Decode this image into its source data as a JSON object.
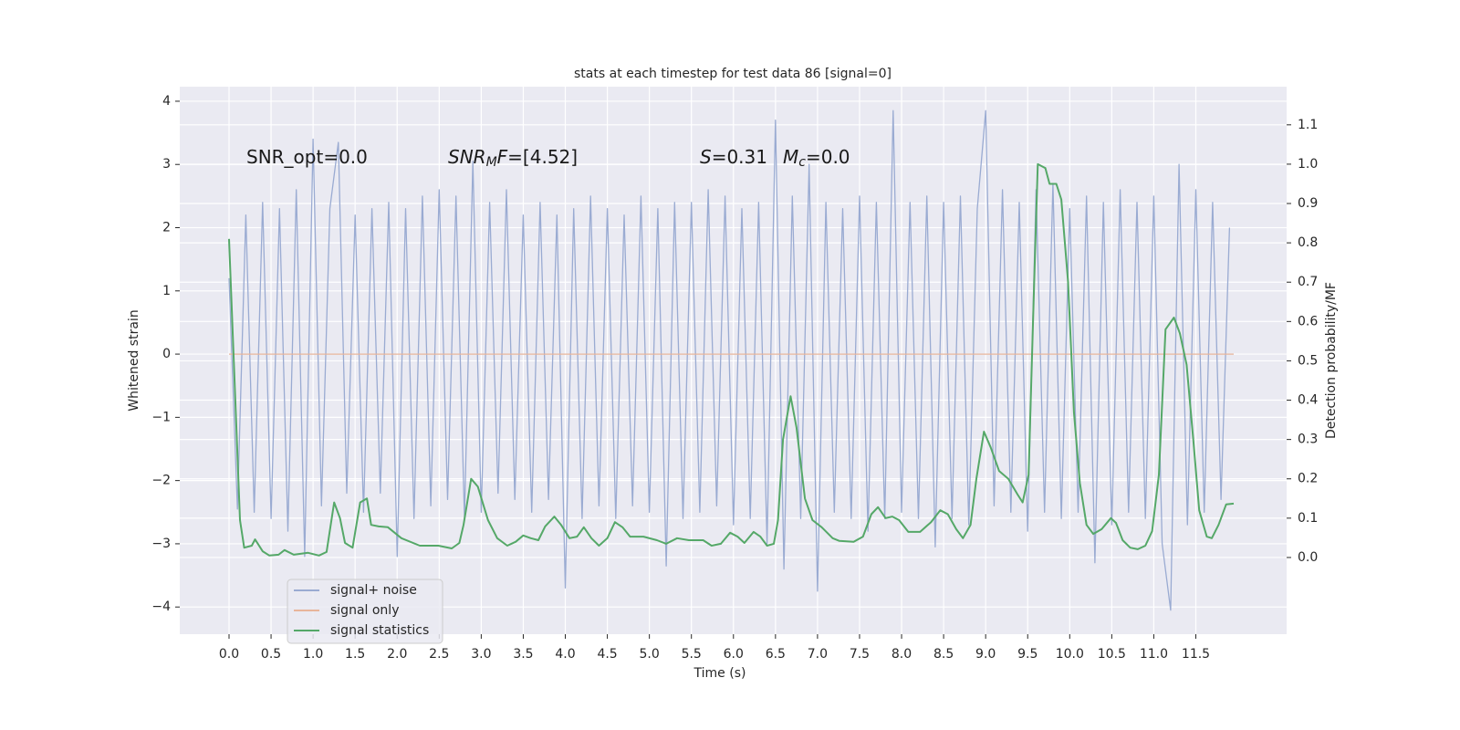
{
  "chart_data": {
    "type": "line",
    "title": "stats at each timestep for test data 86 [signal=0]",
    "xlabel": "Time (s)",
    "ylabel": "Whitened strain",
    "y2label": "Detection probability/MF",
    "xlim": [
      -0.586,
      12.58
    ],
    "ylim": [
      -4.43,
      4.23
    ],
    "y2lim": [
      -0.195,
      1.197
    ],
    "xticks": [
      {
        "value": 0,
        "label": "0.0"
      },
      0.5,
      {
        "value": 1,
        "label": "1.0"
      },
      1.5,
      {
        "value": 2,
        "label": "2.0"
      },
      2.5,
      {
        "value": 3,
        "label": "3.0"
      },
      3.5,
      {
        "value": 4,
        "label": "4.0"
      },
      4.5,
      {
        "value": 5,
        "label": "5.0"
      },
      5.5,
      {
        "value": 6,
        "label": "6.0"
      },
      6.5,
      {
        "value": 7,
        "label": "7.0"
      },
      7.5,
      {
        "value": 8,
        "label": "8.0"
      },
      8.5,
      {
        "value": 9,
        "label": "9.0"
      },
      9.5,
      {
        "value": 10,
        "label": "10.0"
      },
      10.5,
      {
        "value": 11,
        "label": "11.0"
      },
      11.5
    ],
    "yticks": [
      {
        "value": -4,
        "label": "−4"
      },
      {
        "value": -3,
        "label": "−3"
      },
      {
        "value": -2,
        "label": "−2"
      },
      {
        "value": -1,
        "label": "−1"
      },
      0,
      1,
      2,
      3,
      4
    ],
    "y2ticks": [
      {
        "value": 0,
        "label": "0.0"
      },
      0.1,
      0.2,
      0.3,
      0.4,
      0.5,
      0.6,
      0.7,
      0.8,
      0.9,
      {
        "value": 1,
        "label": "1.0"
      },
      1.1
    ],
    "grid": true,
    "legend": "lower left",
    "annotations": [
      [
        {
          "text": "SNR_opt=0.0"
        }
      ],
      [
        {
          "text": "SNR",
          "italic": true
        },
        {
          "text": "M",
          "italic": true,
          "sub": true
        },
        {
          "text": "F",
          "italic": true
        },
        {
          "text": "=[4.52]"
        }
      ],
      [
        {
          "text": "S",
          "italic": true
        },
        {
          "text": "=0.31"
        }
      ],
      [
        {
          "text": "M",
          "italic": true
        },
        {
          "text": "c",
          "italic": true,
          "sub": true
        },
        {
          "text": "=0.0"
        }
      ]
    ],
    "series": [
      {
        "name": "signal+ noise",
        "color": "#9aabd2",
        "x": [
          0,
          0.1,
          0.2,
          0.3,
          0.4,
          0.5,
          0.6,
          0.7,
          0.8,
          0.9,
          1,
          1.1,
          1.2,
          1.3,
          1.4,
          1.5,
          1.6,
          1.7,
          1.8,
          1.9,
          2,
          2.1,
          2.2,
          2.3,
          2.4,
          2.5,
          2.6,
          2.7,
          2.8,
          2.9,
          3,
          3.1,
          3.2,
          3.3,
          3.4,
          3.5,
          3.6,
          3.7,
          3.8,
          3.9,
          4,
          4.1,
          4.2,
          4.3,
          4.4,
          4.5,
          4.6,
          4.7,
          4.8,
          4.9,
          5,
          5.1,
          5.2,
          5.3,
          5.4,
          5.5,
          5.6,
          5.7,
          5.8,
          5.9,
          6,
          6.1,
          6.2,
          6.3,
          6.4,
          6.5,
          6.6,
          6.7,
          6.8,
          6.9,
          7,
          7.1,
          7.2,
          7.3,
          7.4,
          7.5,
          7.6,
          7.7,
          7.8,
          7.9,
          8,
          8.1,
          8.2,
          8.3,
          8.4,
          8.5,
          8.6,
          8.7,
          8.8,
          8.9,
          9,
          9.1,
          9.2,
          9.3,
          9.4,
          9.5,
          9.6,
          9.7,
          9.8,
          9.9,
          10,
          10.1,
          10.2,
          10.3,
          10.4,
          10.5,
          10.6,
          10.7,
          10.8,
          10.9,
          11,
          11.1,
          11.2,
          11.3,
          11.4,
          11.5,
          11.6,
          11.7,
          11.8,
          11.9
        ],
        "values": [
          1.2,
          -2.45,
          2.2,
          -2.5,
          2.4,
          -2.6,
          2.3,
          -2.8,
          2.6,
          -3.2,
          3.4,
          -2.4,
          2.3,
          3.35,
          -2.2,
          2.2,
          -2.5,
          2.3,
          -2.2,
          2.4,
          -3.2,
          2.3,
          -2.6,
          2.5,
          -2.4,
          2.6,
          -2.3,
          2.5,
          -2.6,
          3.05,
          -2.5,
          2.4,
          -2.2,
          2.6,
          -2.3,
          2.2,
          -2.5,
          2.4,
          -2.3,
          2.2,
          -3.7,
          2.3,
          -2.6,
          2.5,
          -2.4,
          2.3,
          -2.6,
          2.2,
          -2.4,
          2.5,
          -2.5,
          2.3,
          -3.35,
          2.4,
          -2.6,
          2.4,
          -2.5,
          2.6,
          -2.4,
          2.5,
          -2.7,
          2.3,
          -2.6,
          2.4,
          -3.0,
          3.7,
          -3.4,
          2.5,
          -2.6,
          3.0,
          -3.75,
          2.4,
          -2.5,
          2.3,
          -2.6,
          2.5,
          -2.8,
          2.4,
          -2.6,
          3.85,
          -2.5,
          2.4,
          -2.6,
          2.5,
          -3.05,
          2.4,
          -2.6,
          2.5,
          -2.7,
          2.3,
          3.85,
          -2.4,
          2.6,
          -2.5,
          2.4,
          -2.8,
          2.6,
          -2.5,
          2.7,
          -2.6,
          2.3,
          -2.5,
          2.5,
          -3.3,
          2.4,
          -2.7,
          2.6,
          -2.5,
          2.4,
          -2.6,
          2.5,
          -3.0,
          -4.05,
          3.0,
          -2.7,
          2.6,
          -2.5,
          2.4,
          -2.3,
          2.0
        ]
      },
      {
        "name": "signal only",
        "color": "#e8b59b",
        "x": [
          0,
          11.95
        ],
        "values": [
          0,
          0
        ]
      },
      {
        "name": "signal statistics",
        "color": "#55a868",
        "axis": "y2",
        "x": [
          0,
          0.13,
          0.18,
          0.27,
          0.31,
          0.4,
          0.48,
          0.59,
          0.66,
          0.77,
          0.94,
          1.07,
          1.16,
          1.25,
          1.32,
          1.38,
          1.47,
          1.56,
          1.64,
          1.69,
          1.78,
          1.89,
          2.05,
          2.27,
          2.49,
          2.65,
          2.74,
          2.79,
          2.88,
          2.96,
          3.08,
          3.19,
          3.31,
          3.41,
          3.5,
          3.59,
          3.68,
          3.76,
          3.87,
          3.95,
          4.05,
          4.14,
          4.22,
          4.31,
          4.4,
          4.5,
          4.59,
          4.68,
          4.77,
          4.93,
          5.09,
          5.2,
          5.33,
          5.47,
          5.64,
          5.74,
          5.85,
          5.96,
          6.05,
          6.13,
          6.24,
          6.32,
          6.4,
          6.48,
          6.53,
          6.59,
          6.68,
          6.75,
          6.85,
          6.94,
          7.05,
          7.18,
          7.26,
          7.43,
          7.54,
          7.64,
          7.72,
          7.81,
          7.89,
          7.97,
          8.08,
          8.22,
          8.35,
          8.46,
          8.55,
          8.65,
          8.73,
          8.82,
          8.89,
          8.98,
          9.06,
          9.16,
          9.27,
          9.38,
          9.44,
          9.51,
          9.58,
          9.62,
          9.71,
          9.76,
          9.84,
          9.9,
          9.98,
          10.05,
          10.12,
          10.2,
          10.28,
          10.38,
          10.49,
          10.55,
          10.63,
          10.72,
          10.81,
          10.9,
          10.98,
          11.06,
          11.14,
          11.24,
          11.31,
          11.39,
          11.47,
          11.54,
          11.63,
          11.69,
          11.77,
          11.86,
          11.95
        ],
        "values": [
          0.81,
          0.095,
          0.025,
          0.03,
          0.046,
          0.016,
          0.005,
          0.007,
          0.019,
          0.007,
          0.012,
          0.005,
          0.014,
          0.14,
          0.1,
          0.037,
          0.025,
          0.14,
          0.15,
          0.083,
          0.079,
          0.077,
          0.049,
          0.03,
          0.03,
          0.023,
          0.037,
          0.083,
          0.2,
          0.18,
          0.095,
          0.049,
          0.03,
          0.04,
          0.056,
          0.049,
          0.044,
          0.079,
          0.104,
          0.083,
          0.049,
          0.053,
          0.077,
          0.049,
          0.03,
          0.049,
          0.09,
          0.077,
          0.053,
          0.053,
          0.044,
          0.035,
          0.049,
          0.044,
          0.044,
          0.03,
          0.035,
          0.063,
          0.053,
          0.037,
          0.065,
          0.053,
          0.03,
          0.035,
          0.095,
          0.3,
          0.41,
          0.33,
          0.15,
          0.095,
          0.077,
          0.049,
          0.042,
          0.04,
          0.053,
          0.11,
          0.128,
          0.1,
          0.104,
          0.095,
          0.065,
          0.065,
          0.09,
          0.12,
          0.11,
          0.072,
          0.049,
          0.083,
          0.2,
          0.32,
          0.28,
          0.22,
          0.2,
          0.16,
          0.14,
          0.21,
          0.72,
          1.0,
          0.99,
          0.95,
          0.95,
          0.91,
          0.7,
          0.37,
          0.19,
          0.083,
          0.06,
          0.072,
          0.1,
          0.088,
          0.044,
          0.025,
          0.021,
          0.03,
          0.067,
          0.21,
          0.58,
          0.61,
          0.57,
          0.49,
          0.3,
          0.12,
          0.053,
          0.049,
          0.083,
          0.135,
          0.137
        ]
      }
    ]
  }
}
